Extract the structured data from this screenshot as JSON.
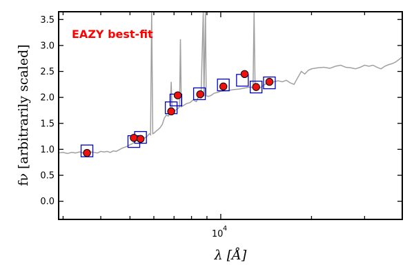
{
  "chart_data": {
    "type": "scatter",
    "title": "",
    "annotation": {
      "text": "EAZY best-fit",
      "color": "#ff0000"
    },
    "xlabel": "λ [Å]",
    "ylabel": "fν [arbitrarily scaled]",
    "x_scale": "log",
    "xlim": [
      2900,
      40000
    ],
    "ylim": [
      -0.35,
      3.65
    ],
    "x_tick_label": {
      "value": 10000,
      "base": "10",
      "exponent": "4"
    },
    "y_ticks": [
      0.0,
      0.5,
      1.0,
      1.5,
      2.0,
      2.5,
      3.0,
      3.5
    ],
    "y_tick_labels": [
      "0.0",
      "0.5",
      "1.0",
      "1.5",
      "2.0",
      "2.5",
      "3.0",
      "3.5"
    ],
    "grid": false,
    "colors": {
      "template_line": "#a0a0a0",
      "model_box_stroke": "#0000cc",
      "observed_marker_fill": "#ee1111",
      "observed_marker_stroke": "#000000",
      "annotation": "#ff0000"
    },
    "series": [
      {
        "kind": "line",
        "points": [
          [
            2900,
            0.93
          ],
          [
            3000,
            0.94
          ],
          [
            3100,
            0.92
          ],
          [
            3200,
            0.94
          ],
          [
            3300,
            0.93
          ],
          [
            3400,
            0.95
          ],
          [
            3500,
            0.93
          ],
          [
            3600,
            0.92
          ],
          [
            3700,
            0.95
          ],
          [
            3800,
            0.94
          ],
          [
            3900,
            0.93
          ],
          [
            4000,
            0.96
          ],
          [
            4100,
            0.95
          ],
          [
            4200,
            0.96
          ],
          [
            4300,
            0.94
          ],
          [
            4400,
            0.97
          ],
          [
            4500,
            0.96
          ],
          [
            4600,
            0.99
          ],
          [
            4700,
            1.02
          ],
          [
            4800,
            1.04
          ],
          [
            4900,
            1.06
          ],
          [
            5000,
            1.09
          ],
          [
            5100,
            1.11
          ],
          [
            5200,
            1.15
          ],
          [
            5300,
            1.18
          ],
          [
            5400,
            1.21
          ],
          [
            5500,
            1.24
          ],
          [
            5600,
            1.22
          ],
          [
            5700,
            1.25
          ],
          [
            5800,
            1.3
          ],
          [
            5850,
            1.28
          ],
          [
            5900,
            3.65
          ],
          [
            5950,
            1.3
          ],
          [
            6000,
            1.31
          ],
          [
            6100,
            1.35
          ],
          [
            6200,
            1.38
          ],
          [
            6300,
            1.42
          ],
          [
            6400,
            1.48
          ],
          [
            6500,
            1.6
          ],
          [
            6600,
            1.66
          ],
          [
            6700,
            1.64
          ],
          [
            6800,
            1.72
          ],
          [
            6850,
            2.3
          ],
          [
            6900,
            1.72
          ],
          [
            7000,
            1.74
          ],
          [
            7100,
            1.76
          ],
          [
            7200,
            1.78
          ],
          [
            7300,
            1.82
          ],
          [
            7350,
            3.12
          ],
          [
            7400,
            1.82
          ],
          [
            7500,
            1.84
          ],
          [
            7700,
            1.88
          ],
          [
            7900,
            1.9
          ],
          [
            8100,
            1.95
          ],
          [
            8300,
            1.92
          ],
          [
            8500,
            2.05
          ],
          [
            8600,
            2.0
          ],
          [
            8750,
            3.65
          ],
          [
            8800,
            2.02
          ],
          [
            8900,
            3.65
          ],
          [
            8950,
            2.03
          ],
          [
            9100,
            2.02
          ],
          [
            9300,
            2.04
          ],
          [
            9500,
            2.08
          ],
          [
            9800,
            2.1
          ],
          [
            10000,
            2.12
          ],
          [
            10500,
            2.13
          ],
          [
            11000,
            2.15
          ],
          [
            11500,
            2.16
          ],
          [
            12000,
            2.18
          ],
          [
            12500,
            2.2
          ],
          [
            12800,
            2.19
          ],
          [
            12900,
            3.65
          ],
          [
            13000,
            2.18
          ],
          [
            13500,
            2.18
          ],
          [
            14000,
            2.25
          ],
          [
            14500,
            2.28
          ],
          [
            15000,
            2.3
          ],
          [
            15500,
            2.32
          ],
          [
            16000,
            2.3
          ],
          [
            16500,
            2.33
          ],
          [
            17000,
            2.28
          ],
          [
            17500,
            2.25
          ],
          [
            18000,
            2.38
          ],
          [
            18500,
            2.5
          ],
          [
            19000,
            2.45
          ],
          [
            19500,
            2.52
          ],
          [
            20000,
            2.55
          ],
          [
            21000,
            2.57
          ],
          [
            22000,
            2.58
          ],
          [
            23000,
            2.56
          ],
          [
            24000,
            2.6
          ],
          [
            25000,
            2.62
          ],
          [
            26000,
            2.58
          ],
          [
            27000,
            2.57
          ],
          [
            28000,
            2.55
          ],
          [
            29000,
            2.58
          ],
          [
            30000,
            2.62
          ],
          [
            31000,
            2.6
          ],
          [
            32000,
            2.62
          ],
          [
            33000,
            2.58
          ],
          [
            34000,
            2.55
          ],
          [
            35000,
            2.6
          ],
          [
            36000,
            2.63
          ],
          [
            37000,
            2.65
          ],
          [
            38000,
            2.68
          ],
          [
            39000,
            2.73
          ],
          [
            40000,
            2.78
          ]
        ]
      },
      {
        "kind": "model_flux_boxes",
        "points": [
          [
            3600,
            0.97
          ],
          [
            5150,
            1.15
          ],
          [
            5420,
            1.23
          ],
          [
            6850,
            1.8
          ],
          [
            7100,
            1.95
          ],
          [
            8500,
            2.07
          ],
          [
            10200,
            2.24
          ],
          [
            11800,
            2.33
          ],
          [
            13100,
            2.2
          ],
          [
            14500,
            2.28
          ]
        ]
      },
      {
        "kind": "observed_flux_points",
        "points": [
          [
            3600,
            0.93
          ],
          [
            5150,
            1.22
          ],
          [
            5420,
            1.2
          ],
          [
            6850,
            1.73
          ],
          [
            7200,
            2.04
          ],
          [
            8550,
            2.06
          ],
          [
            10200,
            2.21
          ],
          [
            12000,
            2.45
          ],
          [
            13100,
            2.2
          ],
          [
            14500,
            2.3
          ]
        ]
      }
    ]
  }
}
